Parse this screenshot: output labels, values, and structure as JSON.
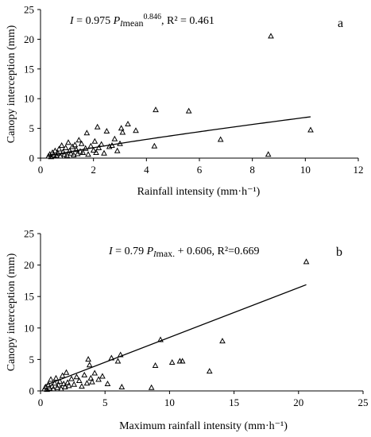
{
  "chart_data": [
    {
      "type": "scatter",
      "panel_letter": "a",
      "equation": {
        "lhs": "I",
        "mid": " = 0.975 ",
        "var_main": "P",
        "var_sub": "I",
        "var_tail": "mean",
        "exponent": "0.846",
        "tail": ", R² = 0.461"
      },
      "xlabel": "Rainfall intensity (mm·h⁻¹)",
      "ylabel": "Canopy interception (mm)",
      "xlim": [
        0,
        12
      ],
      "ylim": [
        0,
        25
      ],
      "xticks": [
        "0",
        "2",
        "4",
        "6",
        "8",
        "10",
        "12"
      ],
      "yticks": [
        "0",
        "5",
        "10",
        "15",
        "20",
        "25"
      ],
      "marker": "open-triangle",
      "fit": {
        "form": "power",
        "a": 0.975,
        "b": 0.846,
        "x_range": [
          0.3,
          10.2
        ]
      },
      "points": [
        [
          0.3,
          0.3
        ],
        [
          0.35,
          0.6
        ],
        [
          0.4,
          0.2
        ],
        [
          0.45,
          0.9
        ],
        [
          0.5,
          0.5
        ],
        [
          0.55,
          1.2
        ],
        [
          0.6,
          0.4
        ],
        [
          0.65,
          0.8
        ],
        [
          0.7,
          1.5
        ],
        [
          0.75,
          0.3
        ],
        [
          0.8,
          2.1
        ],
        [
          0.85,
          1.0
        ],
        [
          0.9,
          0.6
        ],
        [
          0.95,
          1.7
        ],
        [
          1.0,
          0.4
        ],
        [
          1.05,
          2.6
        ],
        [
          1.1,
          1.2
        ],
        [
          1.15,
          0.8
        ],
        [
          1.2,
          1.9
        ],
        [
          1.25,
          0.5
        ],
        [
          1.3,
          2.2
        ],
        [
          1.35,
          1.4
        ],
        [
          1.4,
          0.7
        ],
        [
          1.45,
          3.0
        ],
        [
          1.5,
          1.1
        ],
        [
          1.55,
          2.4
        ],
        [
          1.6,
          0.9
        ],
        [
          1.7,
          1.6
        ],
        [
          1.75,
          4.2
        ],
        [
          1.8,
          0.6
        ],
        [
          1.9,
          2.0
        ],
        [
          2.0,
          1.3
        ],
        [
          2.05,
          2.8
        ],
        [
          2.1,
          0.9
        ],
        [
          2.15,
          5.2
        ],
        [
          2.2,
          1.7
        ],
        [
          2.3,
          2.3
        ],
        [
          2.4,
          0.8
        ],
        [
          2.5,
          4.5
        ],
        [
          2.6,
          1.9
        ],
        [
          2.7,
          2.1
        ],
        [
          2.8,
          3.2
        ],
        [
          2.9,
          1.2
        ],
        [
          3.0,
          2.4
        ],
        [
          3.05,
          5.0
        ],
        [
          3.1,
          4.3
        ],
        [
          3.3,
          5.7
        ],
        [
          3.6,
          4.6
        ],
        [
          4.3,
          2.0
        ],
        [
          4.35,
          8.1
        ],
        [
          5.6,
          7.9
        ],
        [
          6.8,
          3.1
        ],
        [
          8.6,
          0.6
        ],
        [
          8.7,
          20.5
        ],
        [
          10.2,
          4.7
        ]
      ]
    },
    {
      "type": "scatter",
      "panel_letter": "b",
      "equation": {
        "lhs": "I",
        "mid": " = 0.79 ",
        "var_main": "P",
        "var_sub": "I",
        "var_tail": "max.",
        "exponent": "",
        "tail": " + 0.606, R²=0.669"
      },
      "xlabel": "Maximum rainfall  intensity (mm·h⁻¹)",
      "ylabel": "Canopy interception (mm)",
      "xlim": [
        0,
        25
      ],
      "ylim": [
        0,
        25
      ],
      "xticks": [
        "0",
        "5",
        "10",
        "15",
        "20",
        "25"
      ],
      "yticks": [
        "0",
        "5",
        "10",
        "15",
        "20",
        "25"
      ],
      "marker": "open-triangle",
      "fit": {
        "form": "linear",
        "a": 0.79,
        "b": 0.606,
        "x_range": [
          0.3,
          20.6
        ]
      },
      "points": [
        [
          0.3,
          0.3
        ],
        [
          0.4,
          0.6
        ],
        [
          0.5,
          0.2
        ],
        [
          0.6,
          1.0
        ],
        [
          0.7,
          0.4
        ],
        [
          0.8,
          1.8
        ],
        [
          0.9,
          0.7
        ],
        [
          1.0,
          0.3
        ],
        [
          1.1,
          1.2
        ],
        [
          1.2,
          2.0
        ],
        [
          1.3,
          0.5
        ],
        [
          1.4,
          0.9
        ],
        [
          1.5,
          1.5
        ],
        [
          1.6,
          0.3
        ],
        [
          1.7,
          2.4
        ],
        [
          1.8,
          1.1
        ],
        [
          1.9,
          0.6
        ],
        [
          2.0,
          2.9
        ],
        [
          2.1,
          1.3
        ],
        [
          2.2,
          0.8
        ],
        [
          2.4,
          1.9
        ],
        [
          2.6,
          1.0
        ],
        [
          2.8,
          2.2
        ],
        [
          3.0,
          1.6
        ],
        [
          3.2,
          0.7
        ],
        [
          3.4,
          2.5
        ],
        [
          3.6,
          1.2
        ],
        [
          3.7,
          5.0
        ],
        [
          3.8,
          4.1
        ],
        [
          3.9,
          2.0
        ],
        [
          4.0,
          1.4
        ],
        [
          4.2,
          2.8
        ],
        [
          4.5,
          1.8
        ],
        [
          4.8,
          2.3
        ],
        [
          5.2,
          1.1
        ],
        [
          5.5,
          5.2
        ],
        [
          6.0,
          4.7
        ],
        [
          6.2,
          5.7
        ],
        [
          6.3,
          0.6
        ],
        [
          8.6,
          0.5
        ],
        [
          8.9,
          4.0
        ],
        [
          9.3,
          8.1
        ],
        [
          10.2,
          4.5
        ],
        [
          10.8,
          4.7
        ],
        [
          11.0,
          4.7
        ],
        [
          13.1,
          3.1
        ],
        [
          14.1,
          7.9
        ],
        [
          20.6,
          20.5
        ]
      ]
    }
  ]
}
